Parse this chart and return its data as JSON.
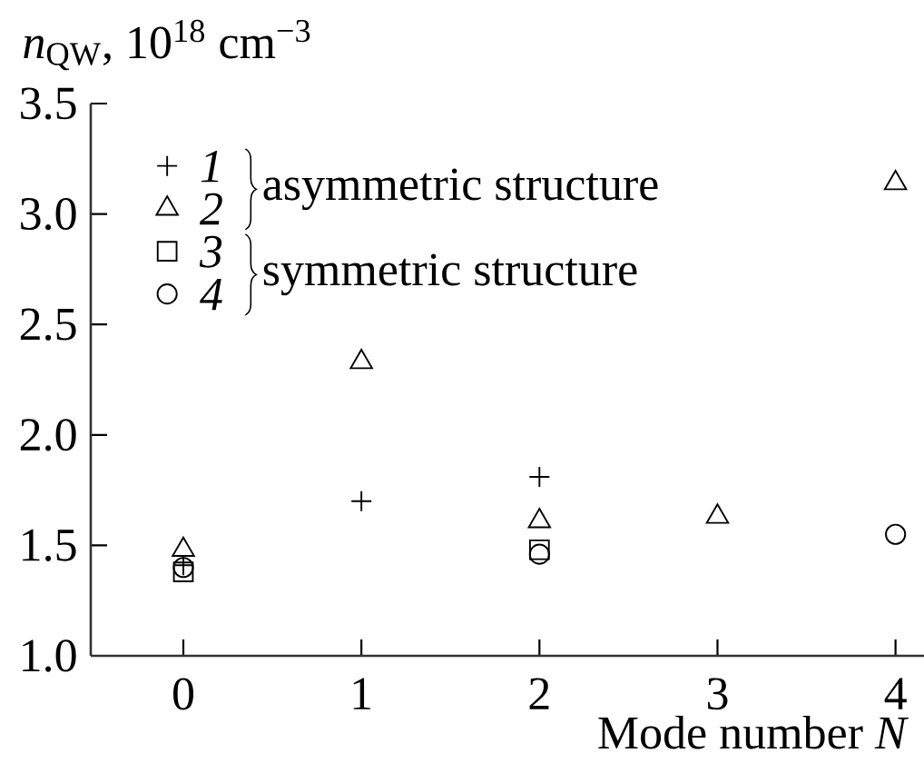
{
  "chart_data": {
    "type": "scatter",
    "xlabel": "Mode number *N*",
    "ylabel": "*n*$_{QW}$, 10$^{18}$ cm$^{−3}$",
    "x": [
      0,
      1,
      2,
      3,
      4
    ],
    "series": [
      {
        "name": "1",
        "color": "#000000",
        "marker": "cross",
        "values": [
          1.41,
          1.7,
          1.81,
          null,
          null
        ]
      },
      {
        "name": "2",
        "color": "#000000",
        "marker": "triangle",
        "values": [
          1.48,
          2.33,
          1.61,
          1.63,
          3.14
        ]
      },
      {
        "name": "3",
        "color": "#000000",
        "marker": "square",
        "values": [
          1.38,
          null,
          1.48,
          null,
          null
        ]
      },
      {
        "name": "4",
        "color": "#000000",
        "marker": "circle",
        "values": [
          1.4,
          null,
          1.46,
          null,
          1.55
        ]
      }
    ],
    "xlim": [
      -0.52,
      4.16
    ],
    "ylim": [
      1,
      3.5
    ],
    "xticks": [
      0,
      1,
      2,
      3,
      4
    ],
    "yticks": [
      {
        "value": 1,
        "label": "1.0"
      },
      1.5,
      {
        "value": 2,
        "label": "2.0"
      },
      2.5,
      {
        "value": 3,
        "label": "3.0"
      },
      3.5
    ],
    "legend": "top left",
    "annotations": [
      "asymmetric structure",
      "symmetric structure"
    ]
  }
}
